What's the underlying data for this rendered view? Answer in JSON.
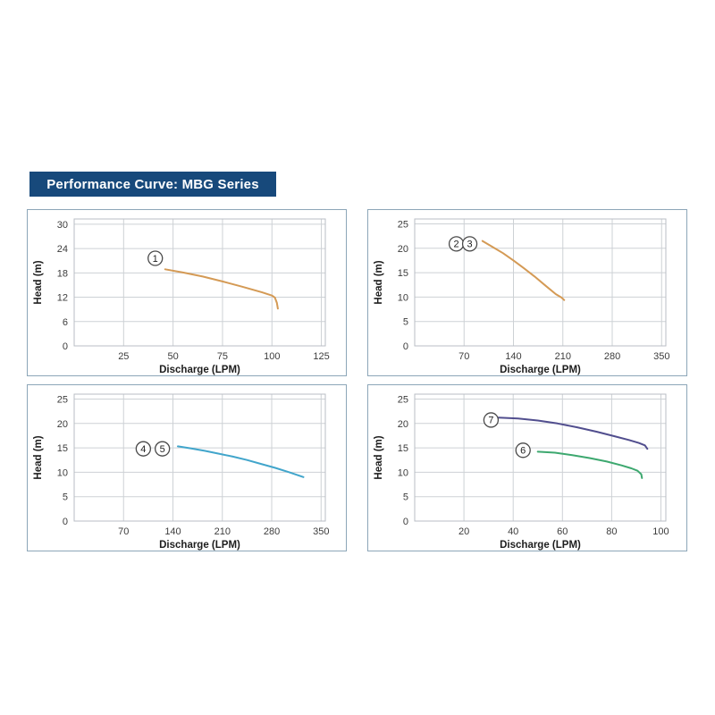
{
  "title_banner": {
    "text": "Performance Curve: MBG Series",
    "bg_color": "#17497B",
    "text_color": "#FFFFFF"
  },
  "style": {
    "panel_border_color": "#8CA6B8",
    "grid_color": "#CDD1D5",
    "plot_border_color": "#B9BEC4",
    "tick_label_color": "#3C3C3C",
    "axis_title_color": "#1D1D1D",
    "curve_label_ring_color": "#4A4A4A",
    "curve_label_text_color": "#222222"
  },
  "chart_data": [
    {
      "id": "top-left",
      "type": "line",
      "title": "",
      "xlabel": "Discharge (LPM)",
      "ylabel": "Head (m)",
      "xticks": [
        25,
        50,
        75,
        100,
        125
      ],
      "yticks": [
        0,
        6,
        12,
        18,
        24,
        30
      ],
      "xlim": [
        0,
        127
      ],
      "ylim": [
        0,
        31.3
      ],
      "grid": true,
      "series": [
        {
          "name": "curve-1",
          "color": "#D49A55",
          "points": [
            [
              46,
              18.9
            ],
            [
              55,
              18.1
            ],
            [
              65,
              17.1
            ],
            [
              75,
              15.9
            ],
            [
              85,
              14.6
            ],
            [
              95,
              13.2
            ],
            [
              100,
              12.4
            ],
            [
              101.5,
              11.9
            ],
            [
              102.5,
              10.6
            ],
            [
              103,
              9.2
            ]
          ]
        }
      ],
      "labels": [
        {
          "text": "1",
          "x": 41,
          "y": 21.6
        }
      ]
    },
    {
      "id": "top-right",
      "type": "line",
      "title": "",
      "xlabel": "Discharge (LPM)",
      "ylabel": "Head (m)",
      "xticks": [
        70,
        140,
        210,
        280,
        350
      ],
      "yticks": [
        0,
        5,
        10,
        15,
        20,
        25
      ],
      "xlim": [
        0,
        356
      ],
      "ylim": [
        0,
        26
      ],
      "grid": true,
      "series": [
        {
          "name": "curve-2-3",
          "color": "#D49A55",
          "points": [
            [
              96,
              21.5
            ],
            [
              110,
              20.3
            ],
            [
              125,
              19.0
            ],
            [
              140,
              17.5
            ],
            [
              155,
              15.9
            ],
            [
              170,
              14.2
            ],
            [
              185,
              12.4
            ],
            [
              200,
              10.6
            ],
            [
              208,
              9.9
            ],
            [
              212,
              9.4
            ]
          ]
        }
      ],
      "labels": [
        {
          "text": "2",
          "x": 59,
          "y": 20.9
        },
        {
          "text": "3",
          "x": 78,
          "y": 20.9
        }
      ]
    },
    {
      "id": "bottom-left",
      "type": "line",
      "title": "",
      "xlabel": "Discharge (LPM)",
      "ylabel": "Head (m)",
      "xticks": [
        70,
        140,
        210,
        280,
        350
      ],
      "yticks": [
        0,
        5,
        10,
        15,
        20,
        25
      ],
      "xlim": [
        0,
        356
      ],
      "ylim": [
        0,
        26
      ],
      "grid": true,
      "series": [
        {
          "name": "curve-4-5",
          "color": "#41A5CB",
          "points": [
            [
              147,
              15.3
            ],
            [
              165,
              14.9
            ],
            [
              185,
              14.4
            ],
            [
              205,
              13.8
            ],
            [
              225,
              13.2
            ],
            [
              245,
              12.5
            ],
            [
              265,
              11.7
            ],
            [
              285,
              10.9
            ],
            [
              305,
              10.0
            ],
            [
              325,
              9.0
            ]
          ]
        }
      ],
      "labels": [
        {
          "text": "4",
          "x": 98,
          "y": 14.8
        },
        {
          "text": "5",
          "x": 125,
          "y": 14.8
        }
      ]
    },
    {
      "id": "bottom-right",
      "type": "line",
      "title": "",
      "xlabel": "Discharge (LPM)",
      "ylabel": "Head (m)",
      "xticks": [
        20,
        40,
        60,
        80,
        100
      ],
      "yticks": [
        0,
        5,
        10,
        15,
        20,
        25
      ],
      "xlim": [
        0,
        102
      ],
      "ylim": [
        0,
        26
      ],
      "grid": true,
      "series": [
        {
          "name": "curve-7",
          "color": "#514E8E",
          "points": [
            [
              34,
              21.2
            ],
            [
              42,
              21.0
            ],
            [
              50,
              20.6
            ],
            [
              58,
              20.0
            ],
            [
              66,
              19.2
            ],
            [
              74,
              18.3
            ],
            [
              81,
              17.4
            ],
            [
              87,
              16.6
            ],
            [
              91,
              16.0
            ],
            [
              93.5,
              15.5
            ],
            [
              94.5,
              14.8
            ]
          ]
        },
        {
          "name": "curve-6",
          "color": "#3DA86F",
          "points": [
            [
              50,
              14.2
            ],
            [
              57,
              14.0
            ],
            [
              64,
              13.5
            ],
            [
              71,
              12.9
            ],
            [
              78,
              12.2
            ],
            [
              84,
              11.4
            ],
            [
              88,
              10.8
            ],
            [
              90.5,
              10.3
            ],
            [
              92,
              9.6
            ],
            [
              92.3,
              8.8
            ]
          ]
        }
      ],
      "labels": [
        {
          "text": "7",
          "x": 31,
          "y": 20.7
        },
        {
          "text": "6",
          "x": 44,
          "y": 14.5
        }
      ]
    }
  ]
}
